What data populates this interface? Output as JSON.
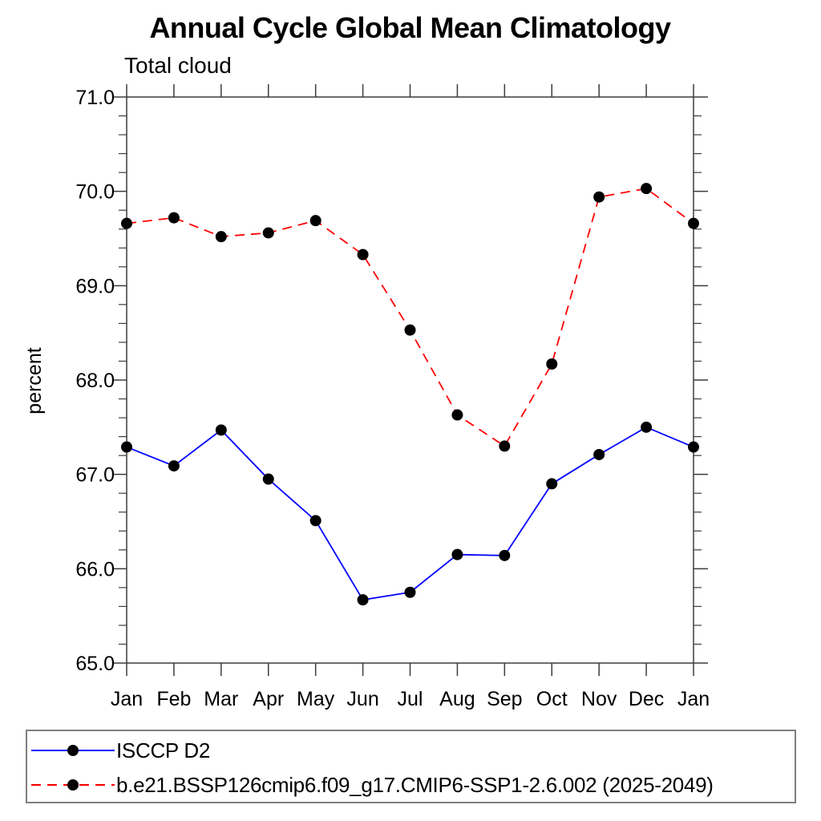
{
  "title": "Annual Cycle Global Mean Climatology",
  "subtitle": "Total cloud",
  "ylabel": "percent",
  "legend": {
    "entries": [
      {
        "label": "ISCCP D2",
        "color": "#0000ff",
        "style": "solid"
      },
      {
        "label": "b.e21.BSSP126cmip6.f09_g17.CMIP6-SSP1-2.6.002 (2025-2049)",
        "color": "#ff0000",
        "style": "dashed"
      }
    ]
  },
  "chart_data": {
    "type": "line",
    "title": "Annual Cycle Global Mean Climatology",
    "subtitle": "Total cloud",
    "xlabel": "",
    "ylabel": "percent",
    "categories": [
      "Jan",
      "Feb",
      "Mar",
      "Apr",
      "May",
      "Jun",
      "Jul",
      "Aug",
      "Sep",
      "Oct",
      "Nov",
      "Dec",
      "Jan"
    ],
    "ylim": [
      65.0,
      71.0
    ],
    "ytick_values": [
      65,
      66,
      67,
      68,
      69,
      70,
      71
    ],
    "ytick_labels": [
      "65.0",
      "66.0",
      "67.0",
      "68.0",
      "69.0",
      "70.0",
      "71.0"
    ],
    "minor_tick_step": 0.2,
    "grid": false,
    "legend_position": "bottom",
    "marker": {
      "shape": "circle",
      "color": "#000000"
    },
    "series": [
      {
        "name": "ISCCP D2",
        "color": "#0000ff",
        "style": "solid",
        "values": [
          67.29,
          67.09,
          67.47,
          66.95,
          66.51,
          65.67,
          65.75,
          66.15,
          66.14,
          66.9,
          67.21,
          67.5,
          67.29
        ]
      },
      {
        "name": "b.e21.BSSP126cmip6.f09_g17.CMIP6-SSP1-2.6.002 (2025-2049)",
        "color": "#ff0000",
        "style": "dashed",
        "values": [
          69.66,
          69.72,
          69.52,
          69.56,
          69.69,
          69.33,
          68.53,
          67.63,
          67.3,
          68.17,
          69.94,
          70.03,
          69.66
        ]
      }
    ]
  },
  "colors": {
    "axis": "#3c3c3c",
    "text": "#000000",
    "background": "#ffffff",
    "legend_border": "#7f7f7f",
    "series_blue": "#0000ff",
    "series_red": "#ff0000",
    "marker": "#000000"
  }
}
